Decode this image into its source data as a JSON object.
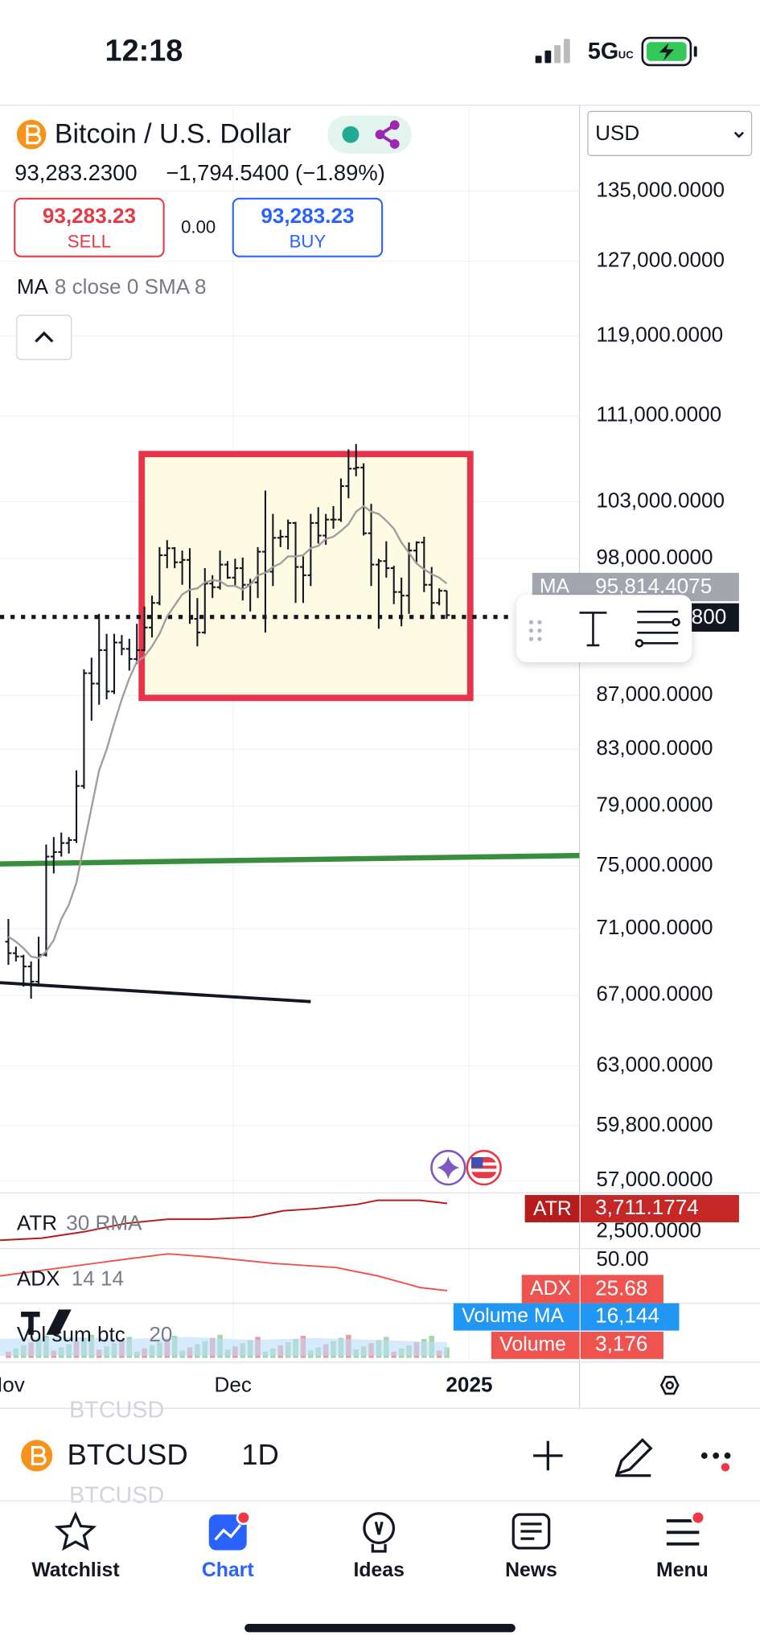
{
  "status_bar": {
    "time": "12:18",
    "network": "5G",
    "network_sub": "UC"
  },
  "header": {
    "symbol_name": "Bitcoin / U.S. Dollar",
    "last_price": "93,283.2300",
    "change": "−1,794.5400 (−1.89%)",
    "sell": {
      "price": "93,283.23",
      "label": "SELL"
    },
    "spread": "0.00",
    "buy": {
      "price": "93,283.23",
      "label": "BUY"
    },
    "indicator": {
      "name": "MA",
      "params": "8 close 0 SMA 8"
    },
    "currency": "USD"
  },
  "chart_data": {
    "type": "ohlc",
    "log_scale": true,
    "bar_color": "#131722",
    "ylim": [
      56400,
      145500
    ],
    "yticks": [
      {
        "value": 135000,
        "label": "135,000.0000"
      },
      {
        "value": 127000,
        "label": "127,000.0000"
      },
      {
        "value": 119000,
        "label": "119,000.0000"
      },
      {
        "value": 111000,
        "label": "111,000.0000"
      },
      {
        "value": 103000,
        "label": "103,000.0000"
      },
      {
        "value": 98000,
        "label": "98,000.0000"
      },
      {
        "value": 87000,
        "label": "87,000.0000"
      },
      {
        "value": 83000,
        "label": "83,000.0000"
      },
      {
        "value": 79000,
        "label": "79,000.0000"
      },
      {
        "value": 75000,
        "label": "75,000.0000"
      },
      {
        "value": 71000,
        "label": "71,000.0000"
      },
      {
        "value": 67000,
        "label": "67,000.0000"
      },
      {
        "value": 63000,
        "label": "63,000.0000"
      },
      {
        "value": 59800,
        "label": "59,800.0000"
      },
      {
        "value": 57000,
        "label": "57,000.0000"
      }
    ],
    "open": [
      70200,
      69500,
      69300,
      68700,
      67800,
      69400,
      75600,
      75900,
      76500,
      76700,
      80400,
      88700,
      87900,
      90500,
      87300,
      91100,
      90600,
      89800,
      90500,
      92300,
      94300,
      98300,
      98900,
      97700,
      97900,
      93000,
      91900,
      95900,
      95600,
      97500,
      96400,
      97200,
      95800,
      96000,
      98600,
      96900,
      99800,
      99900,
      101100,
      97300,
      96600,
      101100,
      100000,
      101400,
      101400,
      104400,
      106000,
      106100,
      100200,
      97500,
      97800,
      97200,
      95200,
      94900,
      98700,
      99400,
      95800,
      94300,
      95300
    ],
    "high": [
      71600,
      69900,
      69400,
      69000,
      70500,
      76400,
      76900,
      77200,
      76900,
      81500,
      89000,
      89900,
      93400,
      91800,
      91800,
      91700,
      91400,
      92600,
      94000,
      94900,
      99000,
      99600,
      99000,
      98700,
      98900,
      94700,
      97200,
      96600,
      98700,
      97800,
      98000,
      98100,
      96300,
      99000,
      104000,
      101900,
      100500,
      101400,
      101200,
      98200,
      101900,
      102500,
      101900,
      102600,
      105100,
      107800,
      108300,
      106500,
      102800,
      98000,
      99500,
      97400,
      96400,
      99400,
      99500,
      99900,
      97300,
      95500,
      95300
    ],
    "low": [
      68800,
      69000,
      67500,
      66800,
      67500,
      69300,
      74500,
      75600,
      75800,
      76500,
      80200,
      85100,
      86300,
      86700,
      87100,
      90100,
      88900,
      89400,
      90400,
      91500,
      94100,
      97200,
      97200,
      95800,
      92600,
      90800,
      91800,
      94700,
      95400,
      96300,
      95700,
      94500,
      93600,
      94700,
      91900,
      95700,
      99000,
      98800,
      94300,
      94300,
      95700,
      99300,
      99200,
      100600,
      101200,
      103300,
      105300,
      100000,
      95700,
      92200,
      96400,
      94200,
      92400,
      93400,
      97600,
      95200,
      93300,
      94100,
      93000
    ],
    "close": [
      69500,
      69300,
      68700,
      67800,
      69400,
      75600,
      75900,
      76500,
      76700,
      80400,
      88700,
      87900,
      90500,
      87300,
      91100,
      90600,
      89800,
      90500,
      92300,
      94300,
      98300,
      98900,
      97700,
      97900,
      93000,
      91900,
      95900,
      95600,
      97500,
      96400,
      97200,
      95800,
      96000,
      98600,
      96900,
      99800,
      99900,
      101100,
      97300,
      96600,
      101100,
      100000,
      101400,
      101400,
      104400,
      106000,
      106100,
      100200,
      97500,
      97800,
      97200,
      95200,
      94900,
      98700,
      99400,
      95800,
      94300,
      95300,
      93300
    ],
    "ma": {
      "name": "MA",
      "color": "#9e9e9e",
      "last_label": "95,814.4075",
      "values": [
        70500,
        70200,
        69800,
        69300,
        69200,
        69600,
        70300,
        71600,
        72500,
        73900,
        76400,
        78900,
        81500,
        83000,
        84900,
        86700,
        88300,
        89600,
        90000,
        90800,
        91800,
        93200,
        94100,
        95000,
        95400,
        95500,
        96000,
        96200,
        96100,
        95700,
        95700,
        95400,
        95800,
        96600,
        96800,
        97300,
        97600,
        98200,
        98200,
        98300,
        98900,
        99100,
        99700,
        99900,
        100400,
        101000,
        102100,
        102600,
        102100,
        101900,
        101300,
        100600,
        99400,
        98500,
        97600,
        97100,
        96700,
        96400,
        95900
      ]
    },
    "price_badge": "800",
    "x_labels": [
      "Nov",
      "Dec",
      "2025"
    ]
  },
  "panes": {
    "atr": {
      "name": "ATR",
      "params": "30 RMA",
      "value": "3,711.1774",
      "scale": "2,500.0000"
    },
    "adx": {
      "name": "ADX",
      "params": "14 14",
      "value": "25.68",
      "scale": "50.00"
    },
    "volume": {
      "name": "Vol sum btc",
      "params": "20",
      "ma_label": "Volume MA",
      "ma_value": "16,144",
      "label": "Volume",
      "value": "3,176"
    }
  },
  "symbol_bar": {
    "symbol": "BTCUSD",
    "interval": "1D",
    "ghost": "BTCUSD"
  },
  "tabs": [
    "Watchlist",
    "Chart",
    "Ideas",
    "News",
    "Menu"
  ]
}
